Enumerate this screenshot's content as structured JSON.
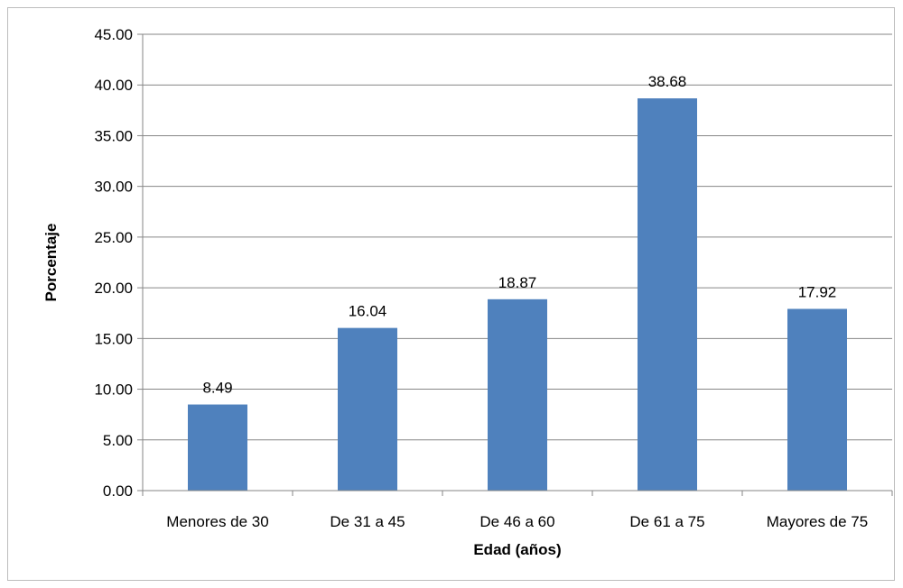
{
  "chart_data": {
    "type": "bar",
    "categories": [
      "Menores de 30",
      "De 31 a 45",
      "De 46 a 60",
      "De 61 a 75",
      "Mayores de 75"
    ],
    "values": [
      8.49,
      16.04,
      18.87,
      38.68,
      17.92
    ],
    "value_labels": [
      "8.49",
      "16.04",
      "18.87",
      "38.68",
      "17.92"
    ],
    "title": "",
    "xlabel": "Edad (años)",
    "ylabel": "Porcentaje",
    "ylim": [
      0,
      45
    ],
    "yticks": [
      "0.00",
      "5.00",
      "10.00",
      "15.00",
      "20.00",
      "25.00",
      "30.00",
      "35.00",
      "40.00",
      "45.00"
    ],
    "grid": true,
    "legend": "none",
    "bar_color": "#4f81bd"
  }
}
